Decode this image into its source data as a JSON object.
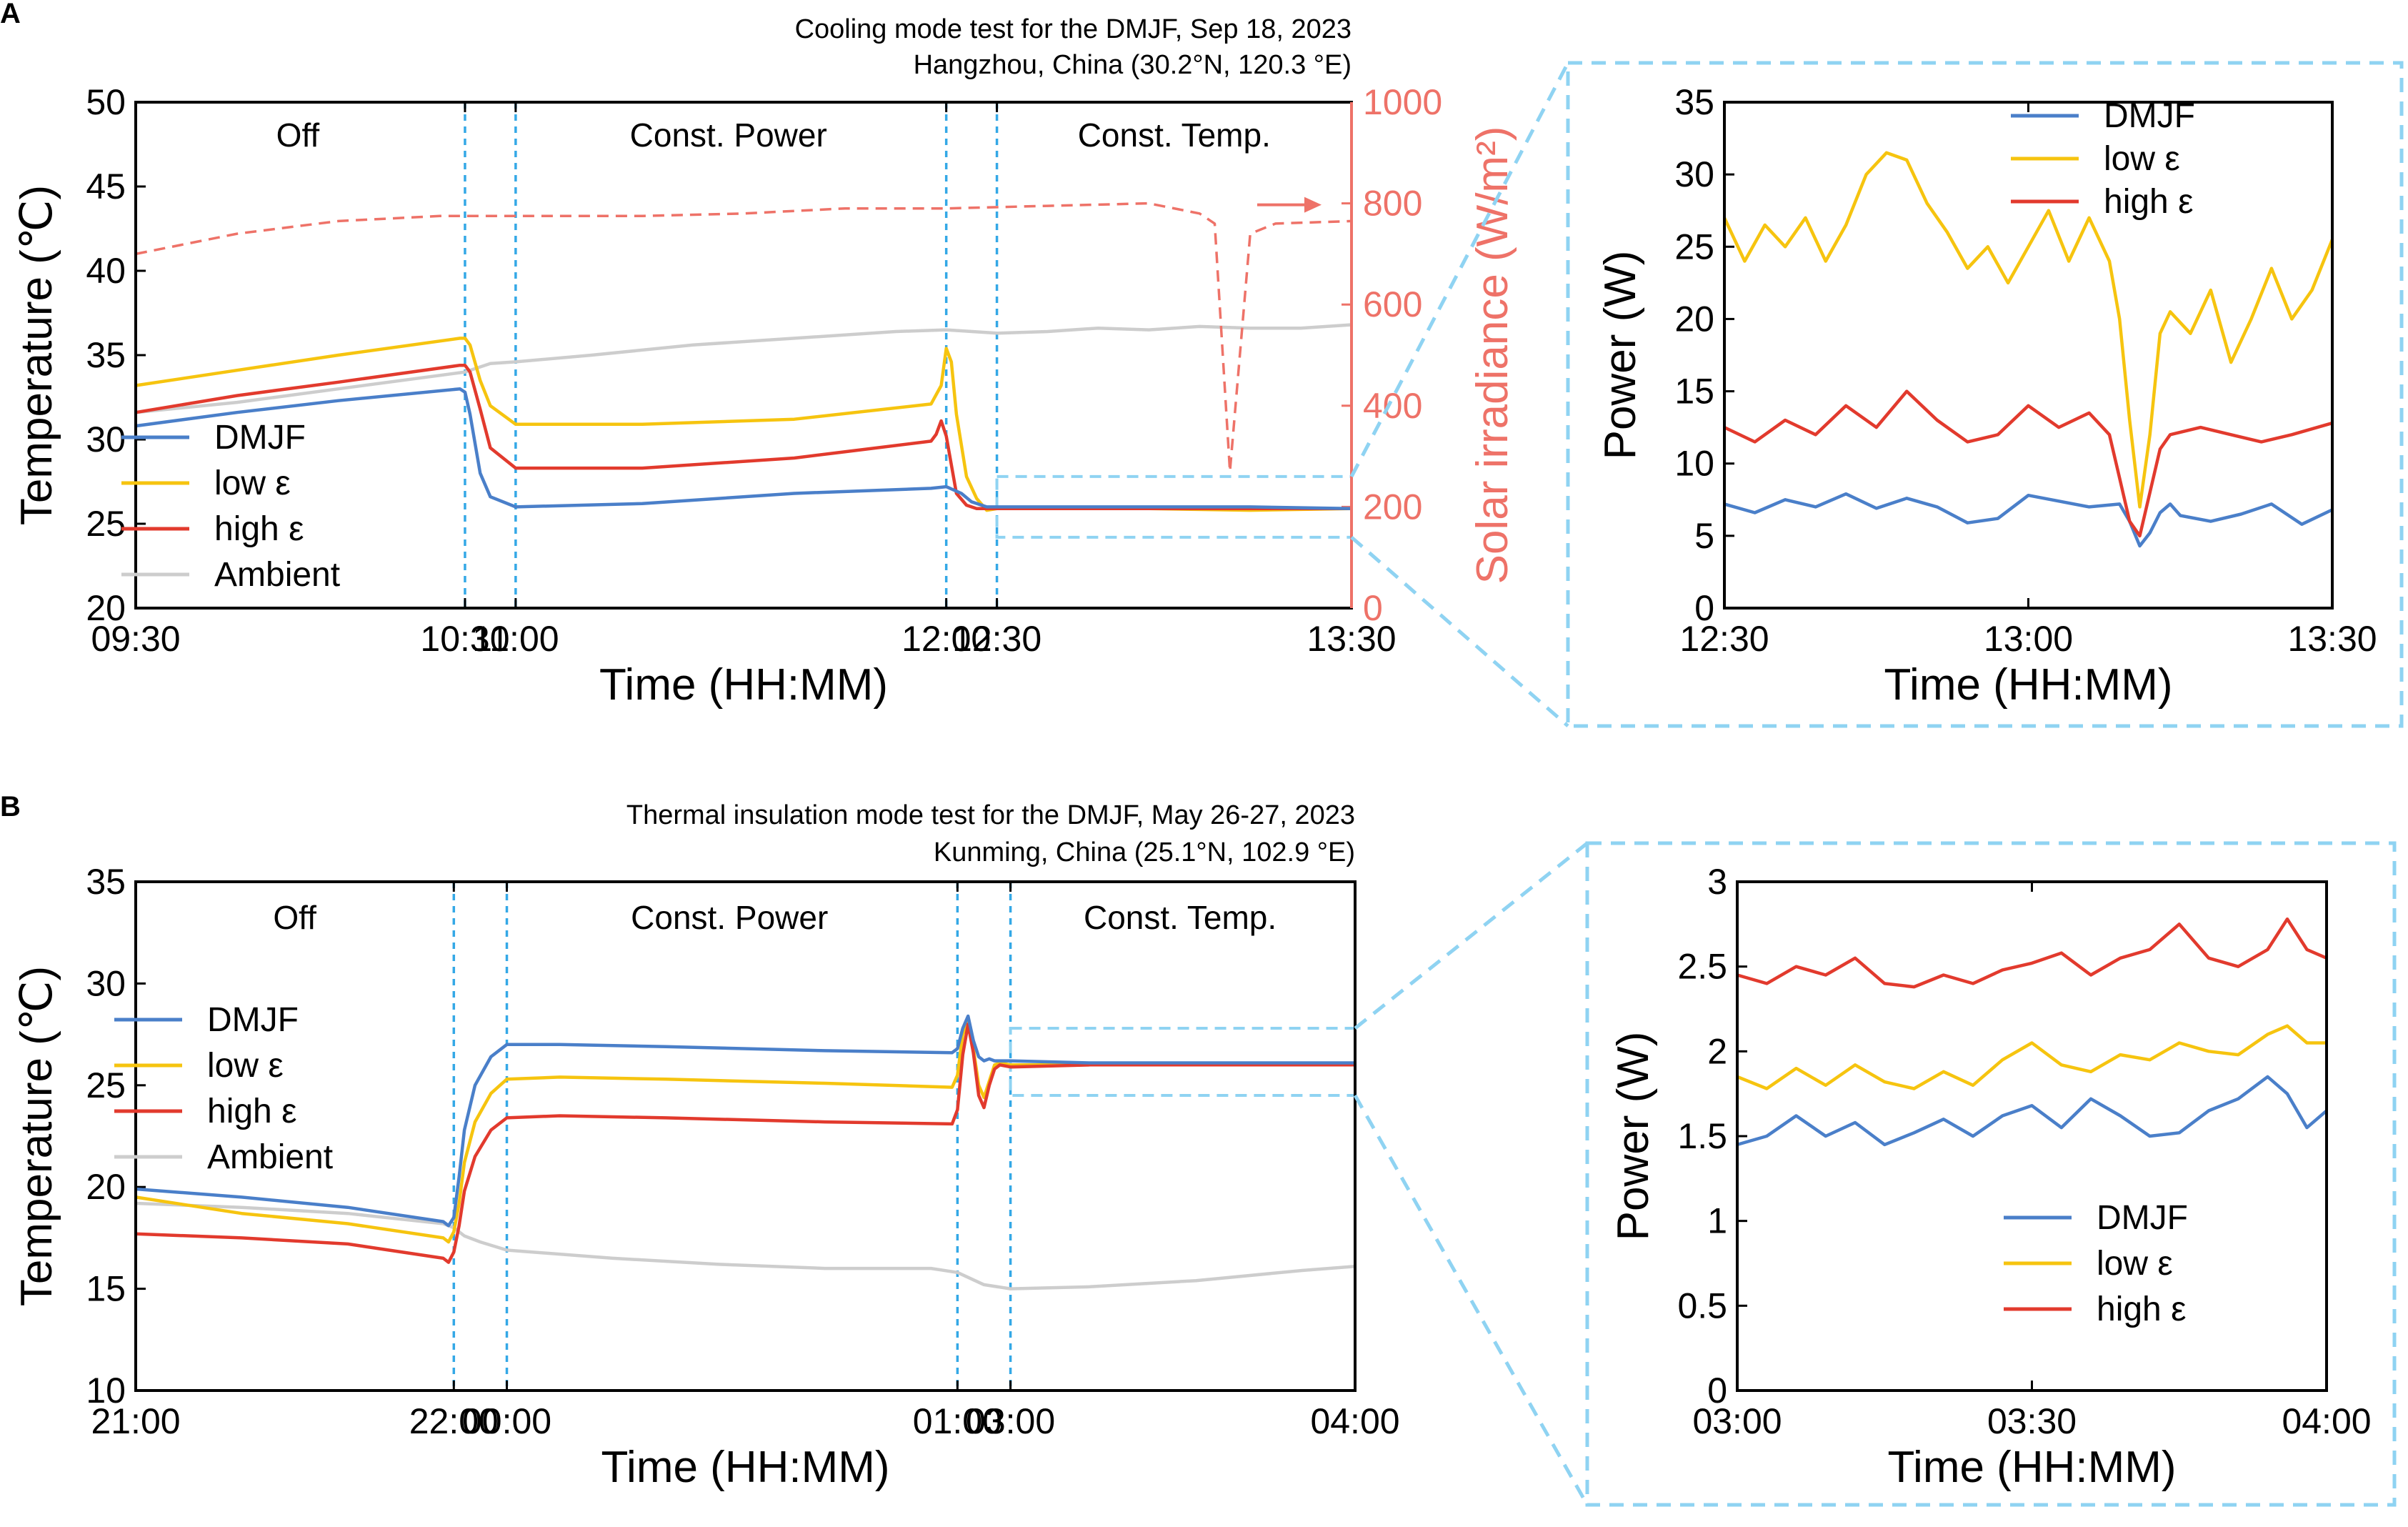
{
  "colors": {
    "dmjf": "#4a7fc9",
    "low": "#f6c40f",
    "high": "#e23a2d",
    "ambient": "#cdcdcd",
    "solar": "#ee7268",
    "dashed": "#34a8e6",
    "zoom": "#8fd3f2"
  },
  "chart_data": [
    {
      "id": "A-main",
      "panel": "A",
      "type": "line",
      "title": "Cooling mode test for the DMJF, Sep 18, 2023",
      "subtitle": "Hangzhou, China (30.2°N, 120.3 °E)",
      "xlabel": "Time (HH:MM)",
      "ylabel": "Temperature (℃)",
      "y2label": "Solar irradiance (W/m²)",
      "xlim": [
        0,
        240
      ],
      "ylim": [
        20,
        50
      ],
      "y2lim": [
        0,
        1000
      ],
      "xticks": [
        0,
        65,
        75,
        160,
        170,
        240
      ],
      "xtick_labels": [
        "09:30",
        "10:30",
        "11:00",
        "12:00",
        "12:30",
        "13:30"
      ],
      "yticks": [
        20,
        25,
        30,
        35,
        40,
        45,
        50
      ],
      "y2ticks": [
        0,
        200,
        400,
        600,
        800,
        1000
      ],
      "phase_lines": [
        65,
        75,
        160,
        170
      ],
      "phases": [
        {
          "label": "Off",
          "x": 32
        },
        {
          "label": "Const. Power",
          "x": 117
        },
        {
          "label": "Const. Temp.",
          "x": 205
        }
      ],
      "legend": [
        "DMJF",
        "low ε",
        "high ε",
        "Ambient"
      ],
      "legend_position": "bottom-left",
      "zoom_box": {
        "x": [
          170,
          240
        ],
        "y": [
          24.2,
          27.8
        ]
      },
      "series": [
        {
          "name": "Ambient",
          "key": "ambient",
          "x": [
            0,
            20,
            40,
            65,
            70,
            75,
            90,
            110,
            130,
            150,
            160,
            170,
            180,
            190,
            200,
            210,
            220,
            230,
            240
          ],
          "values": [
            31.6,
            32.2,
            33,
            34,
            34.5,
            34.6,
            35,
            35.6,
            36,
            36.4,
            36.5,
            36.3,
            36.4,
            36.6,
            36.5,
            36.7,
            36.6,
            36.6,
            36.8
          ]
        },
        {
          "name": "Solar irradiance",
          "key": "solar",
          "axis": "y2",
          "x": [
            0,
            20,
            40,
            60,
            80,
            100,
            120,
            140,
            160,
            180,
            200,
            210,
            213,
            216,
            220,
            225,
            240
          ],
          "values": [
            700,
            740,
            765,
            775,
            775,
            775,
            780,
            790,
            790,
            795,
            800,
            780,
            760,
            270,
            740,
            760,
            765
          ]
        },
        {
          "name": "low ε",
          "key": "low",
          "x": [
            0,
            20,
            40,
            64,
            65,
            66,
            68,
            70,
            75,
            100,
            130,
            157,
            159,
            160,
            161,
            162,
            164,
            166,
            168,
            170,
            175,
            200,
            220,
            240
          ],
          "values": [
            33.2,
            34.1,
            35,
            36,
            36,
            35.6,
            33.5,
            32,
            30.9,
            30.9,
            31.2,
            32.1,
            33.2,
            35.4,
            34.6,
            31.5,
            27.8,
            26.5,
            25.8,
            25.9,
            25.9,
            25.9,
            25.8,
            25.9
          ]
        },
        {
          "name": "high ε",
          "key": "high",
          "x": [
            0,
            20,
            40,
            64,
            65,
            66,
            68,
            70,
            75,
            100,
            130,
            157,
            158,
            159,
            160,
            161,
            162,
            164,
            166,
            168,
            170,
            175,
            200,
            220,
            240
          ],
          "values": [
            31.6,
            32.6,
            33.4,
            34.4,
            34.4,
            34,
            31.8,
            29.5,
            28.3,
            28.3,
            28.9,
            29.9,
            30.3,
            31.1,
            30.2,
            28.5,
            26.8,
            26.1,
            25.9,
            25.9,
            25.9,
            25.9,
            25.9,
            25.9,
            25.9
          ]
        },
        {
          "name": "DMJF",
          "key": "dmjf",
          "x": [
            0,
            20,
            40,
            64,
            65,
            66,
            68,
            70,
            75,
            100,
            130,
            157,
            160,
            163,
            165,
            168,
            170,
            175,
            200,
            220,
            240
          ],
          "values": [
            30.8,
            31.6,
            32.3,
            33,
            32.8,
            31.5,
            28,
            26.6,
            26,
            26.2,
            26.8,
            27.1,
            27.2,
            26.8,
            26.3,
            26,
            26,
            26,
            26,
            26,
            25.9
          ]
        }
      ]
    },
    {
      "id": "A-zoom",
      "panel": "A",
      "type": "line",
      "xlabel": "Time (HH:MM)",
      "ylabel": "Power (W)",
      "xlim": [
        0,
        60
      ],
      "ylim": [
        0,
        35
      ],
      "xticks": [
        0,
        30,
        60
      ],
      "xtick_labels": [
        "12:30",
        "13:00",
        "13:30"
      ],
      "yticks": [
        0,
        5,
        10,
        15,
        20,
        25,
        30,
        35
      ],
      "legend": [
        "DMJF",
        "low ε",
        "high ε"
      ],
      "legend_position": "top-right",
      "series": [
        {
          "name": "DMJF",
          "key": "dmjf",
          "x": [
            0,
            3,
            6,
            9,
            12,
            15,
            18,
            21,
            24,
            27,
            30,
            33,
            36,
            39,
            40,
            41,
            42,
            43,
            44,
            45,
            48,
            51,
            54,
            57,
            60
          ],
          "values": [
            7.2,
            6.6,
            7.5,
            7.0,
            7.9,
            6.9,
            7.6,
            7.0,
            5.9,
            6.2,
            7.8,
            7.4,
            7.0,
            7.2,
            6.0,
            4.3,
            5.2,
            6.6,
            7.2,
            6.4,
            6.0,
            6.5,
            7.2,
            5.8,
            6.8
          ]
        },
        {
          "name": "low ε",
          "key": "low",
          "x": [
            0,
            2,
            4,
            6,
            8,
            10,
            12,
            14,
            16,
            18,
            20,
            22,
            24,
            26,
            28,
            30,
            32,
            34,
            36,
            38,
            39,
            40,
            41,
            42,
            43,
            44,
            46,
            48,
            50,
            52,
            54,
            56,
            58,
            60
          ],
          "values": [
            27,
            24,
            26.5,
            25,
            27,
            24,
            26.5,
            30,
            31.5,
            31,
            28,
            26,
            23.5,
            25,
            22.5,
            25,
            27.5,
            24,
            27,
            24,
            20,
            13,
            7,
            12,
            19,
            20.5,
            19,
            22,
            17,
            20,
            23.5,
            20,
            22,
            25.5
          ]
        },
        {
          "name": "high ε",
          "key": "high",
          "x": [
            0,
            3,
            6,
            9,
            12,
            15,
            18,
            21,
            24,
            27,
            30,
            33,
            36,
            38,
            39,
            40,
            41,
            42,
            43,
            44,
            47,
            50,
            53,
            56,
            60
          ],
          "values": [
            12.5,
            11.5,
            13,
            12,
            14,
            12.5,
            15,
            13,
            11.5,
            12,
            14,
            12.5,
            13.5,
            12,
            9,
            6,
            5,
            8,
            11,
            12,
            12.5,
            12,
            11.5,
            12,
            12.8
          ]
        }
      ]
    },
    {
      "id": "B-main",
      "panel": "B",
      "type": "line",
      "title": "Thermal insulation mode test for the DMJF, May 26-27, 2023",
      "subtitle": "Kunming, China (25.1°N, 102.9 °E)",
      "xlabel": "Time (HH:MM)",
      "ylabel": "Temperature (℃)",
      "xlim": [
        0,
        230
      ],
      "ylim": [
        10,
        35
      ],
      "xticks": [
        0,
        60,
        70,
        155,
        165,
        230
      ],
      "xtick_labels": [
        "21:00",
        "22:00",
        "00:00",
        "01:00",
        "03:00",
        "04:00"
      ],
      "yticks": [
        10,
        15,
        20,
        25,
        30,
        35
      ],
      "phase_lines": [
        60,
        70,
        155,
        165
      ],
      "phases": [
        {
          "label": "Off",
          "x": 30
        },
        {
          "label": "Const. Power",
          "x": 112
        },
        {
          "label": "Const. Temp.",
          "x": 197
        }
      ],
      "legend": [
        "DMJF",
        "low ε",
        "high ε",
        "Ambient"
      ],
      "legend_position": "middle-left",
      "zoom_box": {
        "x": [
          165,
          230
        ],
        "y": [
          24.5,
          27.8
        ]
      },
      "series": [
        {
          "name": "Ambient",
          "key": "ambient",
          "x": [
            0,
            20,
            40,
            58,
            60,
            62,
            65,
            70,
            90,
            110,
            130,
            150,
            155,
            160,
            165,
            180,
            200,
            220,
            230
          ],
          "values": [
            19.2,
            19,
            18.7,
            18.2,
            18,
            17.6,
            17.3,
            16.9,
            16.5,
            16.2,
            16,
            16,
            15.8,
            15.2,
            15,
            15.1,
            15.4,
            15.9,
            16.1
          ]
        },
        {
          "name": "low ε",
          "key": "low",
          "x": [
            0,
            20,
            40,
            58,
            59,
            60,
            61,
            62,
            64,
            67,
            70,
            80,
            100,
            130,
            154,
            155,
            156,
            157,
            158,
            159,
            160,
            161,
            162,
            163,
            165,
            180,
            200,
            230
          ],
          "values": [
            19.5,
            18.7,
            18.2,
            17.5,
            17.3,
            17.8,
            19.2,
            21.2,
            23.2,
            24.6,
            25.3,
            25.4,
            25.3,
            25.1,
            24.9,
            25.5,
            27.5,
            28.2,
            26.8,
            25,
            24.4,
            25.2,
            26,
            26.1,
            26,
            26,
            26,
            26
          ]
        },
        {
          "name": "high ε",
          "key": "high",
          "x": [
            0,
            20,
            40,
            58,
            59,
            60,
            61,
            62,
            64,
            67,
            70,
            80,
            100,
            130,
            154,
            155,
            156,
            157,
            158,
            159,
            160,
            161,
            162,
            163,
            165,
            180,
            200,
            230
          ],
          "values": [
            17.7,
            17.5,
            17.2,
            16.5,
            16.3,
            16.8,
            18.1,
            19.8,
            21.5,
            22.8,
            23.4,
            23.5,
            23.4,
            23.2,
            23.1,
            23.8,
            26.5,
            28,
            26.6,
            24.5,
            23.9,
            25,
            25.8,
            26,
            25.9,
            26,
            26,
            26
          ]
        },
        {
          "name": "DMJF",
          "key": "dmjf",
          "x": [
            0,
            20,
            40,
            58,
            59,
            60,
            61,
            62,
            64,
            67,
            70,
            80,
            100,
            130,
            154,
            155,
            156,
            157,
            158,
            159,
            160,
            161,
            162,
            163,
            165,
            180,
            200,
            230
          ],
          "values": [
            19.9,
            19.5,
            19,
            18.3,
            18.1,
            18.5,
            20.5,
            22.8,
            25,
            26.4,
            27,
            27,
            26.9,
            26.7,
            26.6,
            26.8,
            27.8,
            28.4,
            27.2,
            26.4,
            26.2,
            26.3,
            26.2,
            26.2,
            26.2,
            26.1,
            26.1,
            26.1
          ]
        }
      ]
    },
    {
      "id": "B-zoom",
      "panel": "B",
      "type": "line",
      "xlabel": "Time (HH:MM)",
      "ylabel": "Power (W)",
      "xlim": [
        0,
        60
      ],
      "ylim": [
        0,
        3
      ],
      "xticks": [
        0,
        30,
        60
      ],
      "xtick_labels": [
        "03:00",
        "03:30",
        "04:00"
      ],
      "yticks": [
        0,
        0.5,
        1,
        1.5,
        2,
        2.5,
        3
      ],
      "ytick_labels": [
        "0",
        "0.5",
        "1",
        "1.5",
        "2",
        "2.5",
        "3"
      ],
      "legend": [
        "DMJF",
        "low ε",
        "high ε"
      ],
      "legend_position": "bottom-right",
      "series": [
        {
          "name": "high ε",
          "key": "high",
          "x": [
            0,
            3,
            6,
            9,
            12,
            15,
            18,
            21,
            24,
            27,
            30,
            33,
            36,
            39,
            42,
            45,
            48,
            51,
            54,
            56,
            58,
            60
          ],
          "values": [
            2.45,
            2.4,
            2.5,
            2.45,
            2.55,
            2.4,
            2.38,
            2.45,
            2.4,
            2.48,
            2.52,
            2.58,
            2.45,
            2.55,
            2.6,
            2.75,
            2.55,
            2.5,
            2.6,
            2.78,
            2.6,
            2.55
          ]
        },
        {
          "name": "low ε",
          "key": "low",
          "x": [
            0,
            3,
            6,
            9,
            12,
            15,
            18,
            21,
            24,
            27,
            30,
            33,
            36,
            39,
            42,
            45,
            48,
            51,
            54,
            56,
            58,
            60
          ],
          "values": [
            1.85,
            1.78,
            1.9,
            1.8,
            1.92,
            1.82,
            1.78,
            1.88,
            1.8,
            1.95,
            2.05,
            1.92,
            1.88,
            1.98,
            1.95,
            2.05,
            2.0,
            1.98,
            2.1,
            2.15,
            2.05,
            2.05
          ]
        },
        {
          "name": "DMJF",
          "key": "dmjf",
          "x": [
            0,
            3,
            6,
            9,
            12,
            15,
            18,
            21,
            24,
            27,
            30,
            33,
            36,
            39,
            42,
            45,
            48,
            51,
            54,
            56,
            58,
            60
          ],
          "values": [
            1.45,
            1.5,
            1.62,
            1.5,
            1.58,
            1.45,
            1.52,
            1.6,
            1.5,
            1.62,
            1.68,
            1.55,
            1.72,
            1.62,
            1.5,
            1.52,
            1.65,
            1.72,
            1.85,
            1.75,
            1.55,
            1.65
          ]
        }
      ]
    }
  ]
}
